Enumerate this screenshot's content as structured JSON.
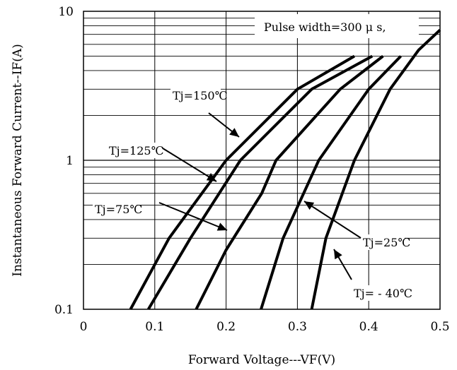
{
  "chart_data": {
    "type": "line",
    "title": "",
    "xlabel": "Forward Voltage---VF(V)",
    "ylabel": "Instantaneous Forward Current--IF(A)",
    "xlim": [
      0,
      0.5
    ],
    "ylim": [
      0.1,
      10
    ],
    "yscale": "log",
    "grid": true,
    "x_ticks": [
      "0",
      "0.1",
      "0.2",
      "0.3",
      "0.4",
      "0.5"
    ],
    "y_ticks": [
      "0.1",
      "1",
      "10"
    ],
    "note": "Pulse width=300 μ s,",
    "series": [
      {
        "name": "Tj=150℃",
        "x": [
          0.066,
          0.12,
          0.2,
          0.3,
          0.38
        ],
        "y": [
          0.1,
          0.3,
          1.0,
          3.0,
          5.0
        ]
      },
      {
        "name": "Tj=125℃",
        "x": [
          0.091,
          0.15,
          0.22,
          0.32,
          0.405
        ],
        "y": [
          0.1,
          0.3,
          1.0,
          3.0,
          5.0
        ]
      },
      {
        "name": "Tj=75℃",
        "x": [
          0.158,
          0.2,
          0.25,
          0.27,
          0.36,
          0.42
        ],
        "y": [
          0.1,
          0.25,
          0.6,
          1.0,
          3.0,
          5.0
        ]
      },
      {
        "name": "Tj=25℃",
        "x": [
          0.249,
          0.28,
          0.33,
          0.4,
          0.445
        ],
        "y": [
          0.1,
          0.3,
          1.0,
          3.0,
          5.0
        ]
      },
      {
        "name": "Tj= - 40℃",
        "x": [
          0.32,
          0.34,
          0.38,
          0.43,
          0.47,
          0.5
        ],
        "y": [
          0.1,
          0.3,
          1.0,
          3.0,
          5.5,
          7.5
        ]
      }
    ],
    "annotations": [
      {
        "label": "Tj=150℃",
        "series": "Tj=150℃"
      },
      {
        "label": "Tj=125℃",
        "series": "Tj=125℃"
      },
      {
        "label": "Tj=75℃",
        "series": "Tj=75℃"
      },
      {
        "label": "Tj=25℃",
        "series": "Tj=25℃"
      },
      {
        "label": "Tj= - 40℃",
        "series": "Tj= - 40℃"
      }
    ]
  }
}
